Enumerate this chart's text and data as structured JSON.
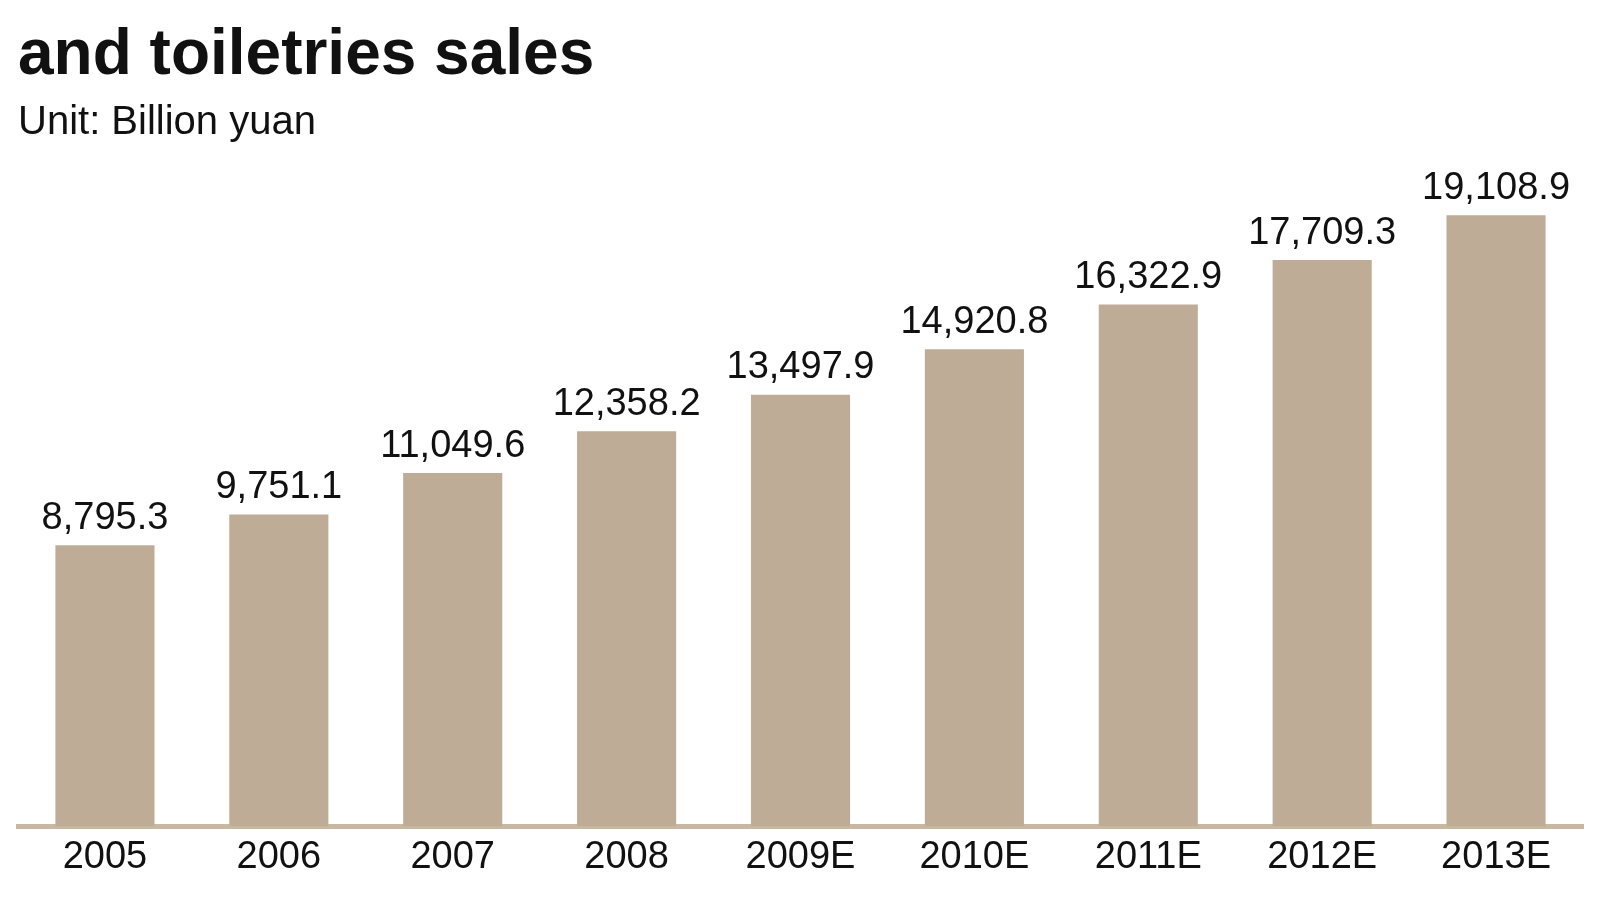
{
  "chart_data": {
    "type": "bar",
    "title": "and toiletries sales",
    "subtitle": "Unit: Billion yuan",
    "categories": [
      "2005",
      "2006",
      "2007",
      "2008",
      "2009E",
      "2010E",
      "2011E",
      "2012E",
      "2013E"
    ],
    "values": [
      8795.3,
      9751.1,
      11049.6,
      12358.2,
      13497.9,
      14920.8,
      16322.9,
      17709.3,
      19108.9
    ],
    "value_labels": [
      "8,795.3",
      "9,751.1",
      "11,049.6",
      "12,358.2",
      "13,497.9",
      "14,920.8",
      "16,322.9",
      "17,709.3",
      "19,108.9"
    ],
    "color": "#bfac96",
    "grid": false,
    "legend": false
  }
}
